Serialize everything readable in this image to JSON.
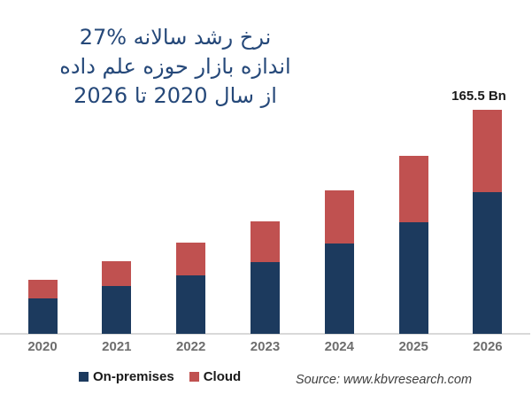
{
  "title": {
    "lines": [
      "نرخ رشد سالانه %27",
      "اندازه بازار حوزه علم داده",
      "از سال 2020 تا 2026"
    ],
    "color": "#254879"
  },
  "annotation": {
    "text": "165.5 Bn"
  },
  "chart_data": {
    "type": "bar",
    "stacked": true,
    "title": "نرخ رشد سالانه %27 — اندازه بازار حوزه علم داده از سال 2020 تا 2026",
    "categories": [
      "2020",
      "2021",
      "2022",
      "2023",
      "2024",
      "2025",
      "2026"
    ],
    "series": [
      {
        "name": "On-premises",
        "color": "#1c3a5e",
        "values": [
          26,
          35,
          43,
          53,
          66.5,
          82.5,
          104.5
        ]
      },
      {
        "name": "Cloud",
        "color": "#c05150",
        "values": [
          14,
          18,
          24,
          30,
          39,
          49,
          61
        ]
      }
    ],
    "totals": [
      40,
      53,
      67,
      83,
      105.5,
      131.5,
      165.5
    ],
    "unit": "Bn",
    "annotations": [
      {
        "category": "2026",
        "text": "165.5 Bn",
        "position": "above-bar"
      }
    ],
    "xlabel": "",
    "ylabel": "",
    "y_axis_visible": false,
    "grid": false,
    "legend_position": "bottom-left",
    "implied_growth_rate": "27%"
  },
  "legend": {
    "items": [
      {
        "label": "On-premises",
        "color": "#1c3a5e"
      },
      {
        "label": "Cloud",
        "color": "#c05150"
      }
    ]
  },
  "source": {
    "text": "Source: www.kbvresearch.com"
  },
  "colors": {
    "on_premises": "#1c3a5e",
    "cloud": "#c05150",
    "axis_line": "#d9d9d9",
    "year_labels": "#6d6d6d",
    "title_text": "#254879"
  }
}
